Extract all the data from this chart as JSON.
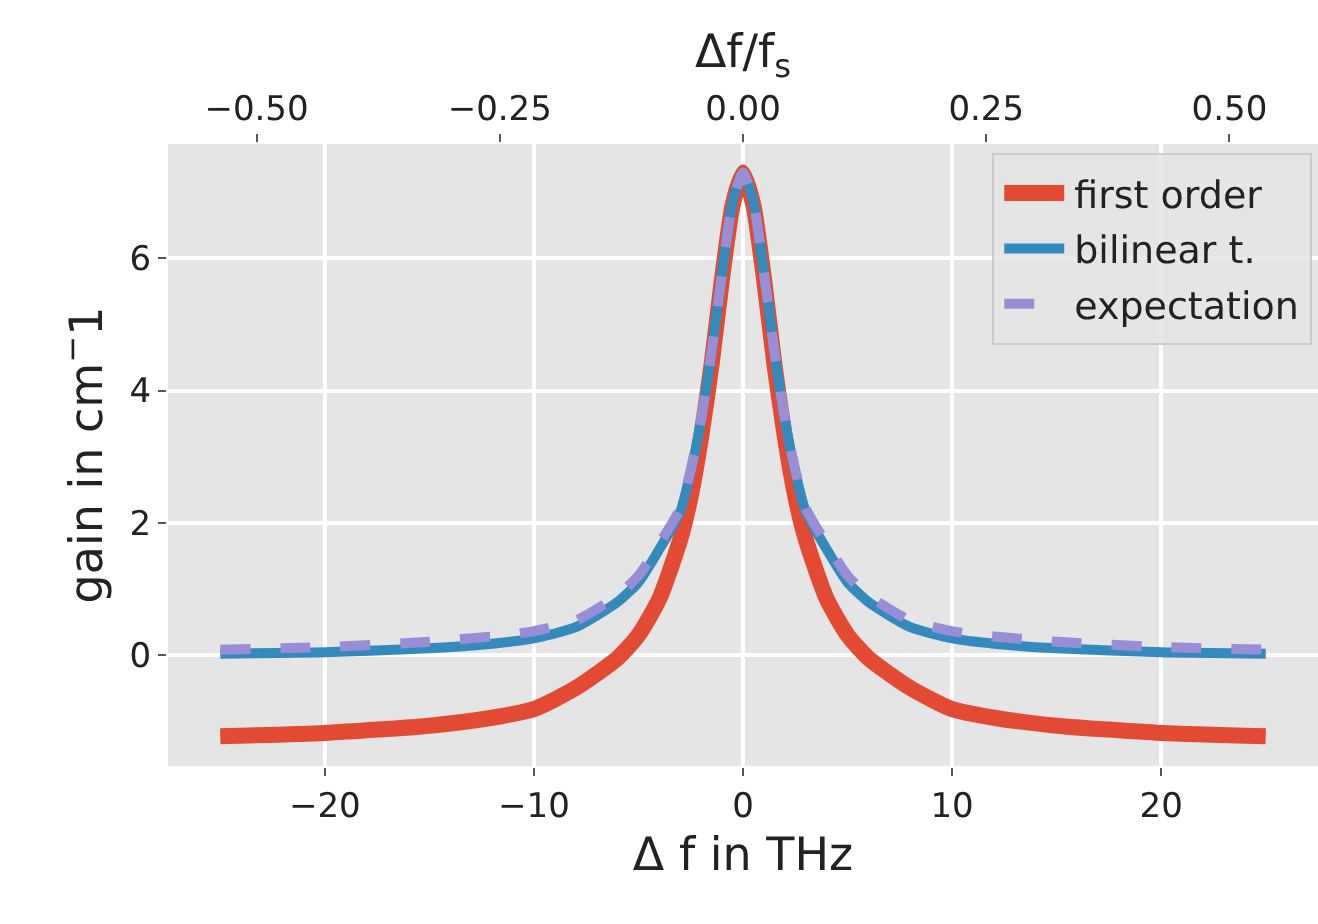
{
  "chart_data": {
    "type": "line",
    "xlabel": "Δ f in THz",
    "ylabel": "gain in cm$^{−}$1",
    "x2label": "Δf/f$_{s}$",
    "x": [
      -25,
      -20,
      -15,
      -12,
      -10,
      -8,
      -6,
      -5,
      -4,
      -3,
      -2.5,
      -2,
      -1.5,
      -1,
      -0.5,
      0,
      0.5,
      1,
      1.5,
      2,
      2.5,
      3,
      4,
      5,
      6,
      8,
      10,
      12,
      15,
      20,
      25
    ],
    "series": [
      {
        "name": "first order",
        "color": "#e24a33",
        "line_style": "solid",
        "values": [
          -1.23,
          -1.18,
          -1.07,
          -0.95,
          -0.82,
          -0.5,
          -0.05,
          0.3,
          0.85,
          1.75,
          2.4,
          3.3,
          4.4,
          5.7,
          6.8,
          7.3,
          6.8,
          5.7,
          4.4,
          3.3,
          2.4,
          1.75,
          0.85,
          0.3,
          -0.05,
          -0.5,
          -0.82,
          -0.95,
          -1.07,
          -1.18,
          -1.23
        ]
      },
      {
        "name": "bilinear t.",
        "color": "#348abd",
        "line_style": "solid",
        "values": [
          0.02,
          0.04,
          0.1,
          0.17,
          0.25,
          0.42,
          0.8,
          1.1,
          1.6,
          2.17,
          2.77,
          3.56,
          4.59,
          5.78,
          6.85,
          7.3,
          6.85,
          5.78,
          4.59,
          3.56,
          2.77,
          2.17,
          1.6,
          1.1,
          0.8,
          0.42,
          0.25,
          0.17,
          0.1,
          0.04,
          0.02
        ]
      },
      {
        "name": "expectation",
        "color": "#988ed5",
        "line_style": "dashed",
        "values": [
          0.08,
          0.12,
          0.2,
          0.28,
          0.36,
          0.52,
          0.9,
          1.2,
          1.68,
          2.22,
          2.8,
          3.58,
          4.6,
          5.78,
          6.85,
          7.3,
          6.85,
          5.78,
          4.6,
          3.58,
          2.8,
          2.22,
          1.68,
          1.2,
          0.9,
          0.52,
          0.36,
          0.28,
          0.2,
          0.12,
          0.08
        ]
      }
    ],
    "xlim": [
      -27.5,
      27.5
    ],
    "xticks": [
      {
        "value": -20,
        "label": "−20"
      },
      {
        "value": -10,
        "label": "−10"
      },
      0,
      10,
      20
    ],
    "x2lim": [
      -0.591,
      0.591
    ],
    "x2ticks": [
      {
        "value": -0.5,
        "label": "−0.50"
      },
      {
        "value": -0.25,
        "label": "−0.25"
      },
      {
        "value": 0,
        "label": "0.00"
      },
      {
        "value": 0.25,
        "label": "0.25"
      },
      {
        "value": 0.5,
        "label": "0.50"
      }
    ],
    "ylim": [
      -1.68,
      7.73
    ],
    "yticks": [
      0,
      2,
      4,
      6
    ],
    "grid": true,
    "legend": "top right",
    "marker": "none"
  }
}
